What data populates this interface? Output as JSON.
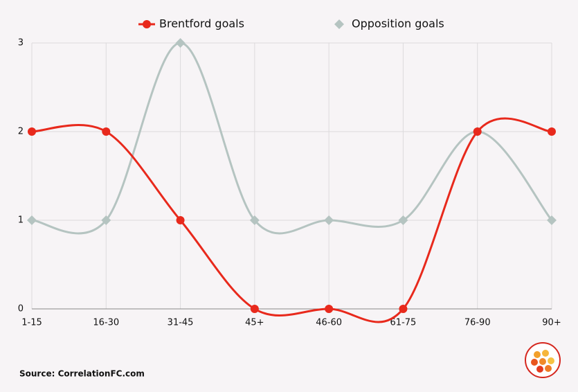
{
  "chart_data": {
    "type": "line",
    "categories": [
      "1-15",
      "16-30",
      "31-45",
      "45+",
      "46-60",
      "61-75",
      "76-90",
      "90+"
    ],
    "series": [
      {
        "name": "Brentford goals",
        "color": "#e8291c",
        "marker": "circle",
        "values": [
          2,
          2,
          1,
          0,
          0,
          0,
          2,
          2
        ]
      },
      {
        "name": "Opposition goals",
        "color": "#b5c4c1",
        "marker": "diamond",
        "values": [
          1,
          1,
          3,
          1,
          1,
          1,
          2,
          1
        ]
      }
    ],
    "ylim": [
      0,
      3
    ],
    "yticks": [
      0,
      1,
      2,
      3
    ],
    "grid": true,
    "smooth": true,
    "legend": "top",
    "source": "Source: CorrelationFC.com"
  }
}
